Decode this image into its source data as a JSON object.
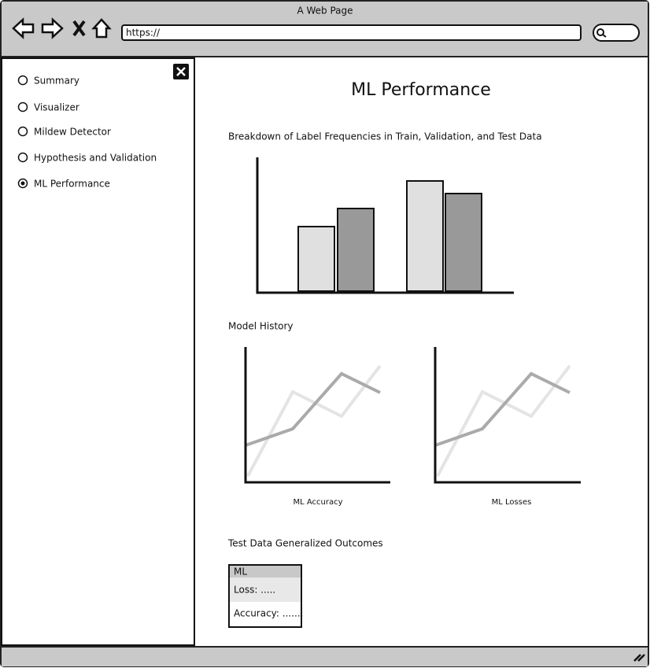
{
  "window": {
    "title": "A Web Page",
    "url": "https://"
  },
  "sidebar": {
    "items": [
      {
        "label": "Summary",
        "selected": false
      },
      {
        "label": "Visualizer",
        "selected": false
      },
      {
        "label": "Mildew Detector",
        "selected": false
      },
      {
        "label": "Hypothesis and Validation",
        "selected": false
      },
      {
        "label": "ML Performance",
        "selected": true
      }
    ]
  },
  "main": {
    "title": "ML Performance",
    "label_chart": {
      "heading": "Breakdown of Label Frequencies in Train, Validation, and Test Data"
    },
    "history": {
      "heading": "Model History",
      "charts": [
        "ML Accuracy",
        "ML Losses"
      ]
    },
    "outcomes": {
      "heading": "Test Data Generalized Outcomes",
      "table": {
        "header": "ML",
        "rows": [
          "Loss: .....",
          "Accuracy: ......."
        ]
      }
    }
  }
}
